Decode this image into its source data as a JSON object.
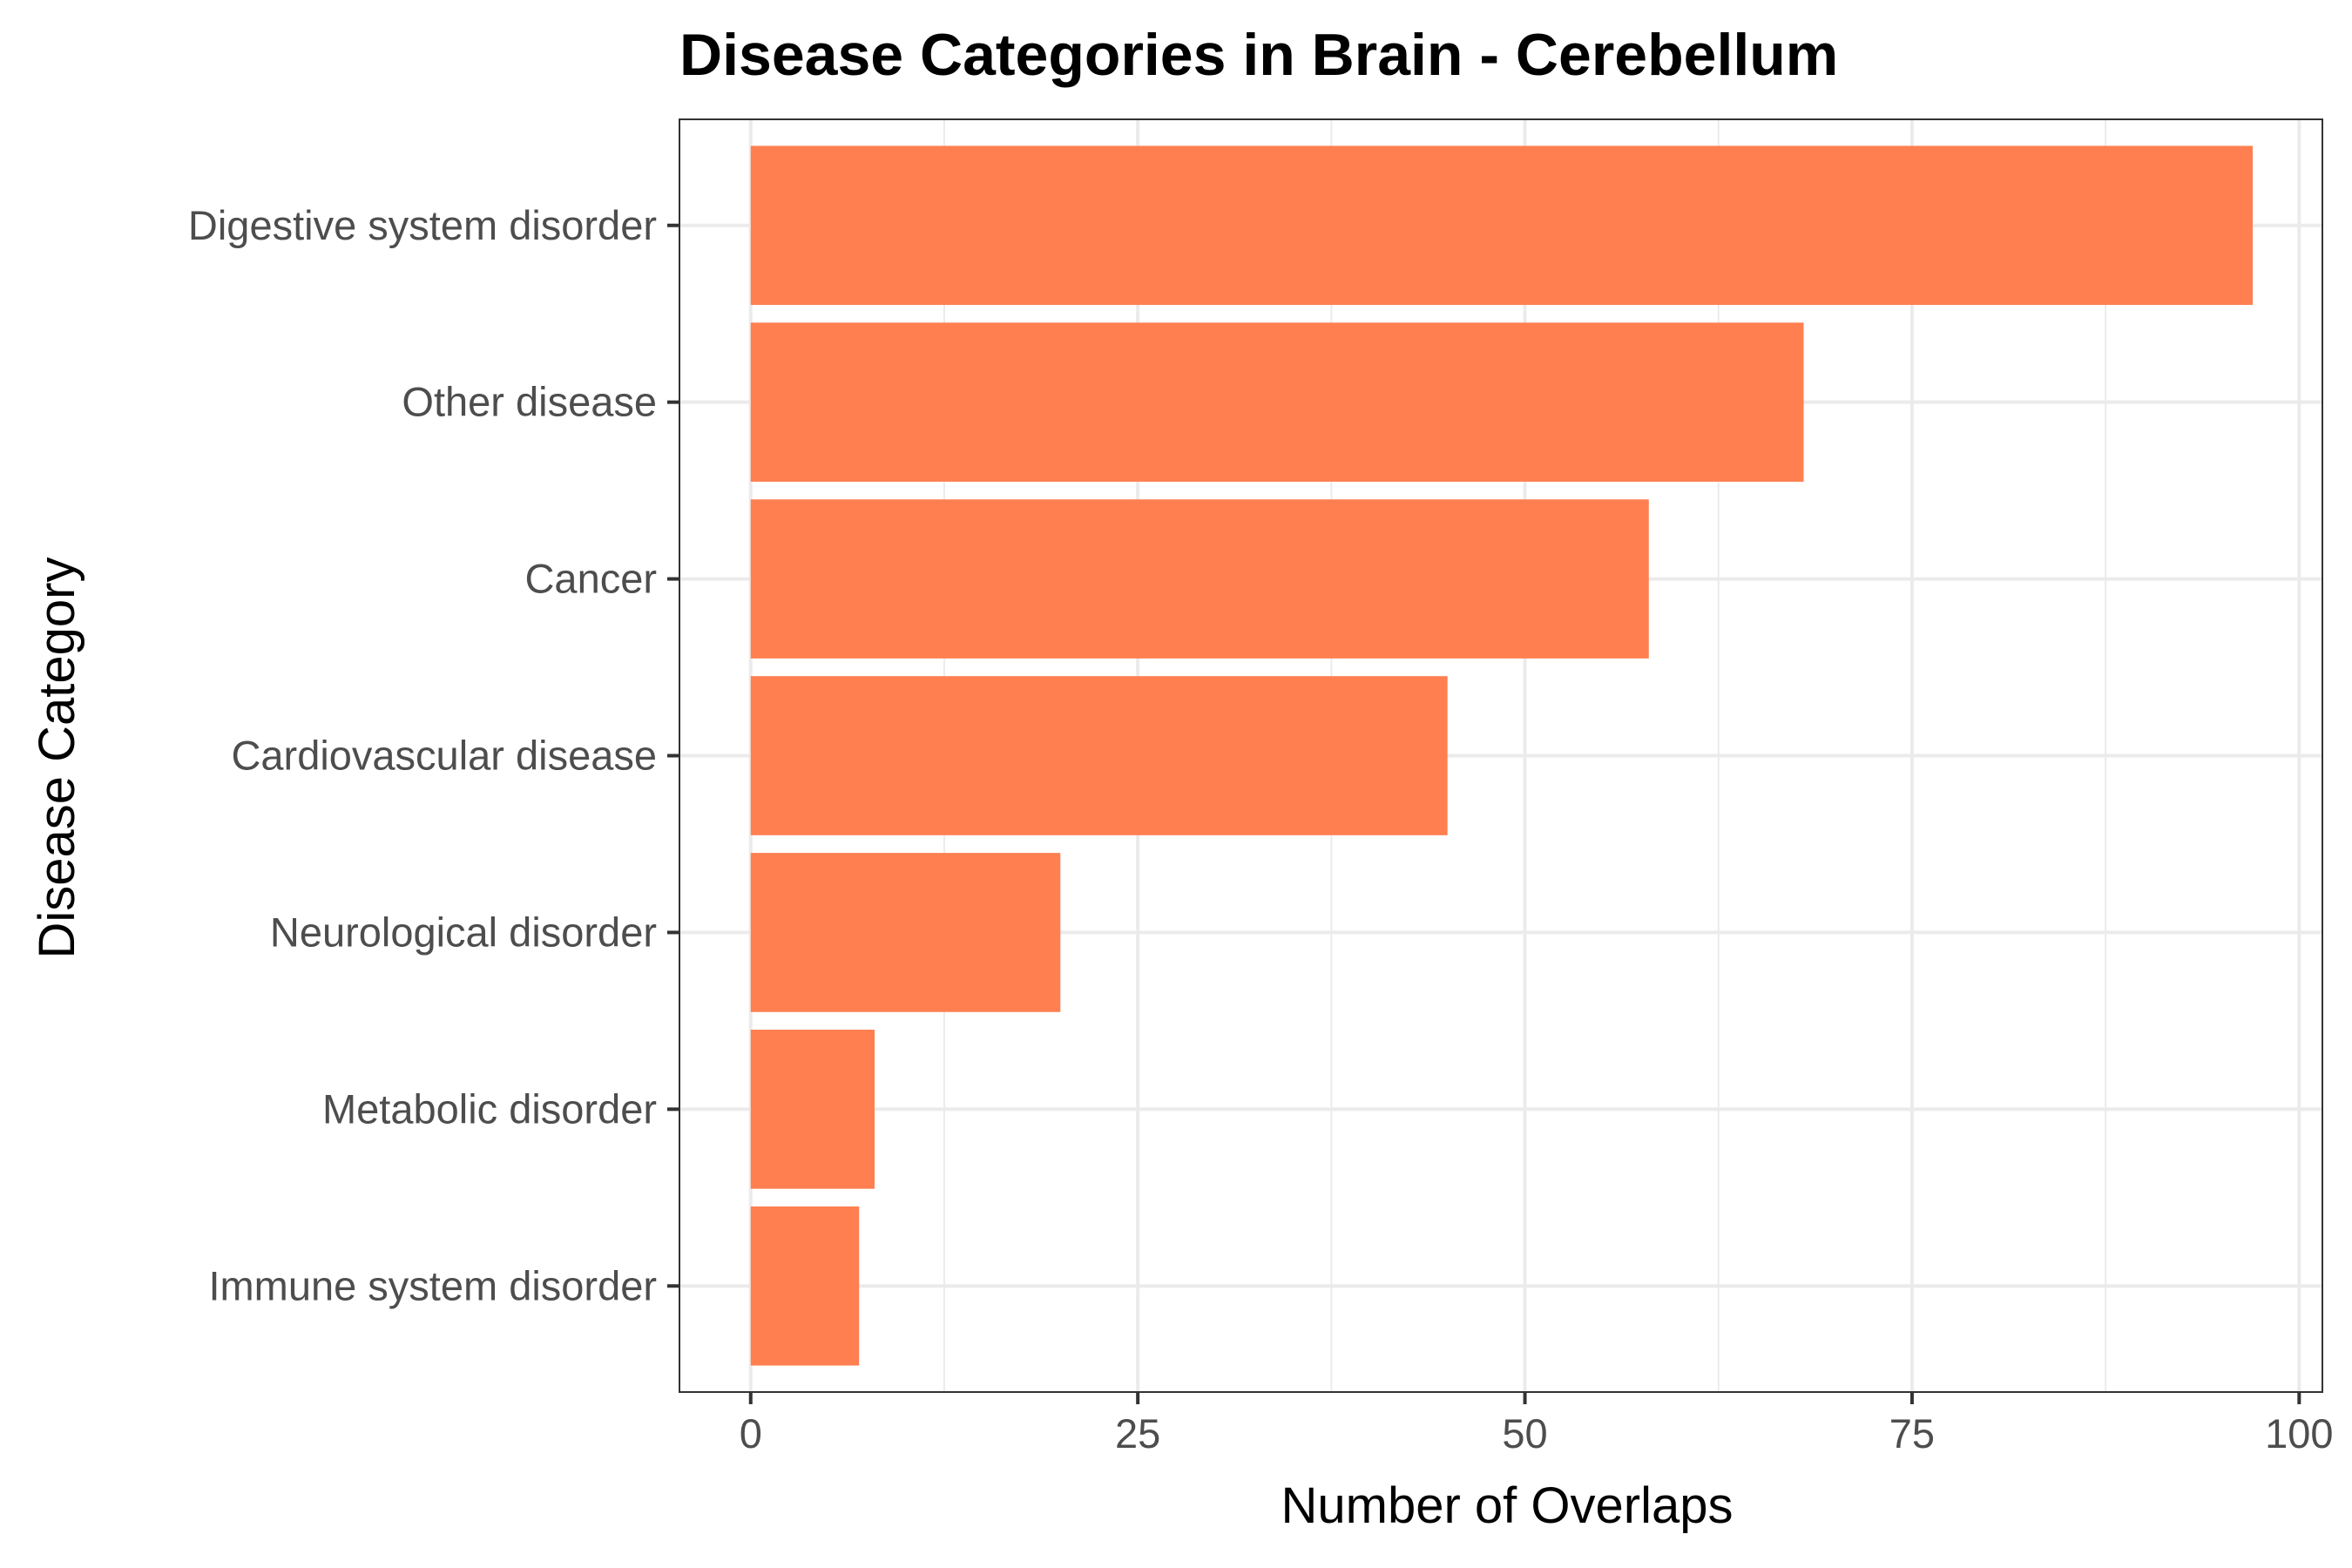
{
  "chart_data": {
    "type": "bar",
    "orientation": "horizontal",
    "title": "Disease Categories in Brain - Cerebellum",
    "xlabel": "Number of Overlaps",
    "ylabel": "Disease Category",
    "categories": [
      "Digestive system disorder",
      "Other disease",
      "Cancer",
      "Cardiovascular disease",
      "Neurological disorder",
      "Metabolic disorder",
      "Immune system disorder"
    ],
    "values": [
      97,
      68,
      58,
      45,
      20,
      8,
      7
    ],
    "xlim": [
      -4.6,
      101.5
    ],
    "x_ticks": [
      "0",
      "25",
      "50",
      "75",
      "100"
    ],
    "grid": true,
    "legend": "none",
    "colors": {
      "bar": "#FF7F50",
      "grid": "#ebebeb",
      "panel_border": "#333333",
      "tick_label": "#4d4d4d",
      "text": "#000000"
    }
  }
}
